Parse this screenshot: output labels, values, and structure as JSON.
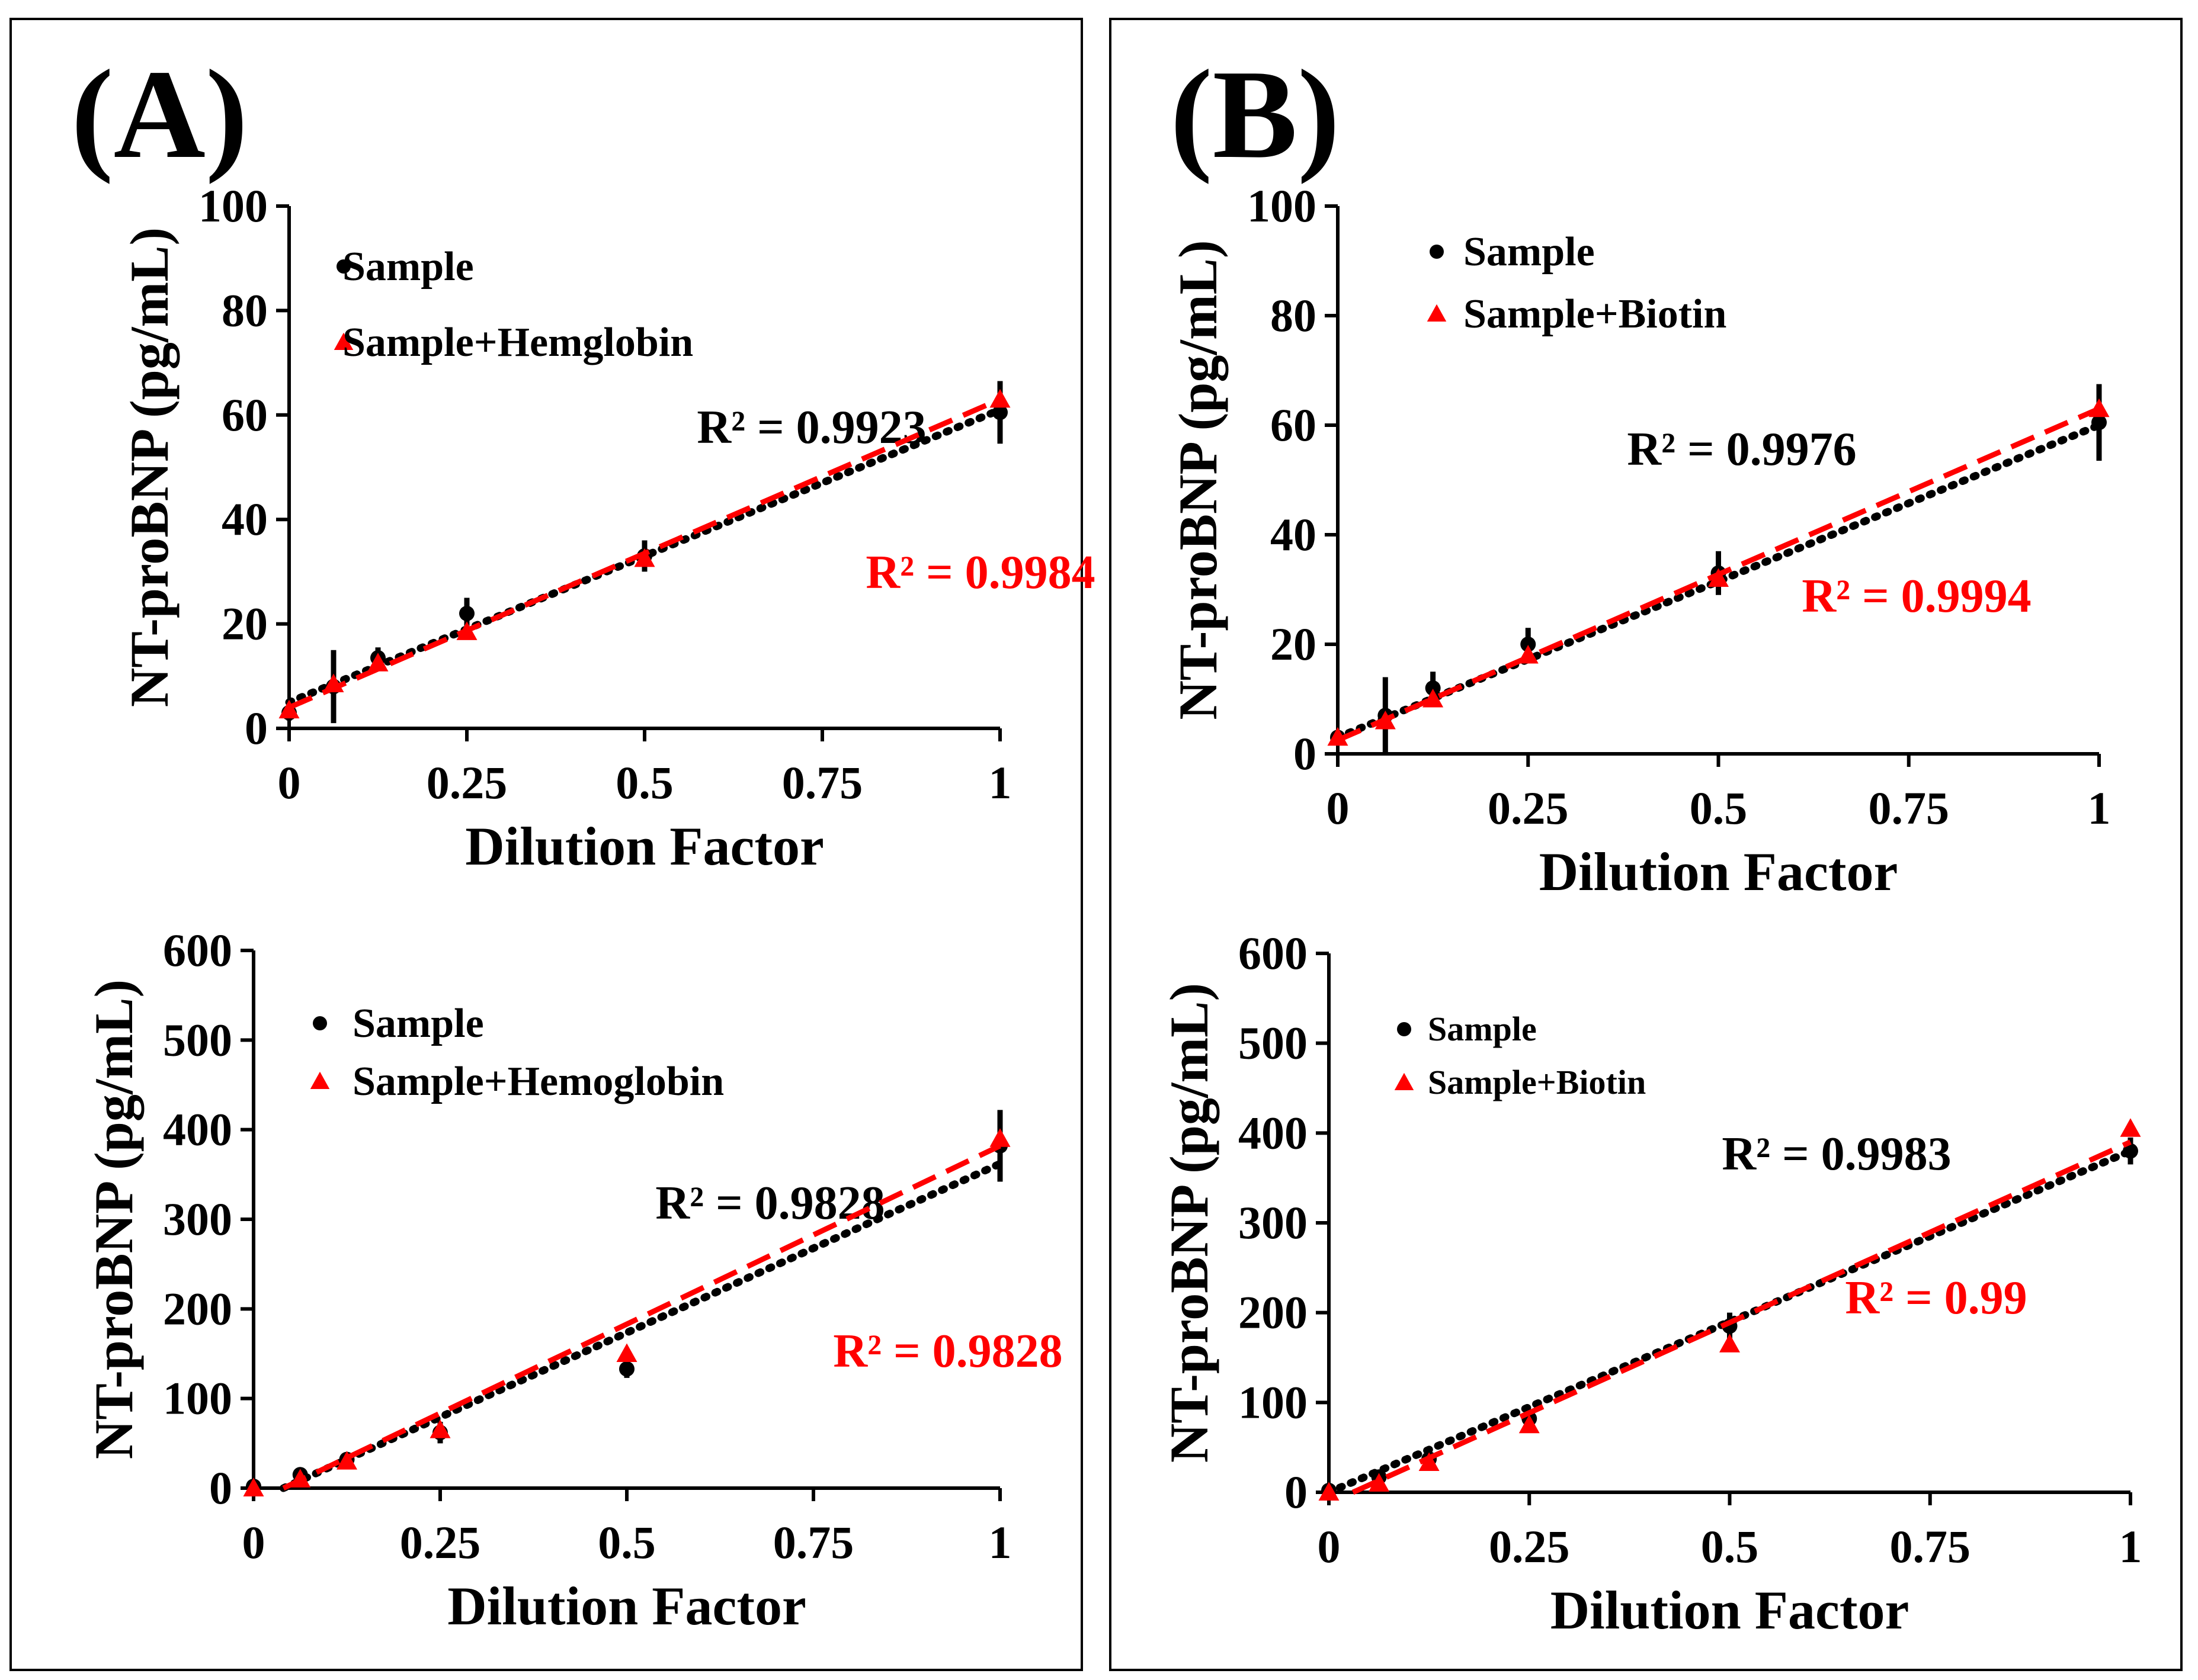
{
  "colors": {
    "sample": "#000000",
    "spiked": "#ff0000",
    "background": "#ffffff"
  },
  "panels": [
    {
      "letter": "(A)"
    },
    {
      "letter": "(B)"
    }
  ],
  "chart_data": [
    {
      "type": "scatter",
      "panel": "A-top",
      "xlabel": "Dilution Factor",
      "ylabel": "NT-proBNP (pg/mL)",
      "xlim": [
        0,
        1
      ],
      "ylim": [
        0,
        100
      ],
      "xticks": [
        "0",
        "0.25",
        "0.5",
        "0.75",
        "1"
      ],
      "yticks": [
        "0",
        "20",
        "40",
        "60",
        "80",
        "100"
      ],
      "xtick_values": [
        0,
        0.25,
        0.5,
        0.75,
        1
      ],
      "ytick_values": [
        0,
        20,
        40,
        60,
        80,
        100
      ],
      "legend_position": "top-left",
      "series": [
        {
          "name": "Sample",
          "marker": "circle",
          "color": "#000000",
          "x": [
            0,
            0.0625,
            0.125,
            0.25,
            0.5,
            1
          ],
          "y": [
            3,
            8,
            13.5,
            22,
            33,
            60.5
          ],
          "err": [
            1.5,
            7,
            2,
            3,
            3,
            6
          ],
          "trend": {
            "style": "dotted",
            "from": [
              0,
              5
            ],
            "to": [
              1,
              61
            ]
          },
          "r2": "R² = 0.9923"
        },
        {
          "name": "Sample+Hemglobin",
          "marker": "triangle",
          "color": "#ff0000",
          "x": [
            0,
            0.0625,
            0.125,
            0.25,
            0.5,
            1
          ],
          "y": [
            3.5,
            8.5,
            12.5,
            18.5,
            32.5,
            63
          ],
          "err": [
            0,
            0,
            0,
            0,
            0,
            0
          ],
          "trend": {
            "style": "dashed",
            "from": [
              0,
              4
            ],
            "to": [
              1,
              63
            ]
          },
          "r2": "R² = 0.9984"
        }
      ]
    },
    {
      "type": "scatter",
      "panel": "A-bottom",
      "xlabel": "Dilution Factor",
      "ylabel": "NT-proBNP (pg/mL)",
      "xlim": [
        0,
        1
      ],
      "ylim": [
        0,
        600
      ],
      "xticks": [
        "0",
        "0.25",
        "0.5",
        "0.75",
        "1"
      ],
      "yticks": [
        "0",
        "100",
        "200",
        "300",
        "400",
        "500",
        "600"
      ],
      "xtick_values": [
        0,
        0.25,
        0.5,
        0.75,
        1
      ],
      "ytick_values": [
        0,
        100,
        200,
        300,
        400,
        500,
        600
      ],
      "legend_position": "top-left",
      "series": [
        {
          "name": "Sample",
          "marker": "circle",
          "color": "#000000",
          "x": [
            0,
            0.0625,
            0.125,
            0.25,
            0.5,
            1
          ],
          "y": [
            2,
            15,
            32,
            62,
            133,
            382
          ],
          "err": [
            2,
            5,
            8,
            12,
            10,
            40
          ],
          "trend": {
            "style": "dotted",
            "from": [
              0.04,
              0
            ],
            "to": [
              1,
              362
            ]
          },
          "r2": "R² = 0.9828"
        },
        {
          "name": "Sample+Hemoglobin",
          "marker": "triangle",
          "color": "#ff0000",
          "x": [
            0,
            0.0625,
            0.125,
            0.25,
            0.5,
            1
          ],
          "y": [
            0,
            10,
            30,
            65,
            150,
            390
          ],
          "err": [
            0,
            0,
            0,
            0,
            0,
            0
          ],
          "trend": {
            "style": "dashed",
            "from": [
              0.04,
              0
            ],
            "to": [
              1,
              382
            ]
          },
          "r2": "R² = 0.9828"
        }
      ]
    },
    {
      "type": "scatter",
      "panel": "B-top",
      "xlabel": "Dilution Factor",
      "ylabel": "NT-proBNP (pg/mL)",
      "xlim": [
        0,
        1
      ],
      "ylim": [
        0,
        100
      ],
      "xticks": [
        "0",
        "0.25",
        "0.5",
        "0.75",
        "1"
      ],
      "yticks": [
        "0",
        "20",
        "40",
        "60",
        "80",
        "100"
      ],
      "xtick_values": [
        0,
        0.25,
        0.5,
        0.75,
        1
      ],
      "ytick_values": [
        0,
        20,
        40,
        60,
        80,
        100
      ],
      "legend_position": "top-left",
      "series": [
        {
          "name": "Sample",
          "marker": "circle",
          "color": "#000000",
          "x": [
            0,
            0.0625,
            0.125,
            0.25,
            0.5,
            1
          ],
          "y": [
            3,
            7,
            12,
            20,
            33,
            60.5
          ],
          "err": [
            1,
            7,
            3,
            3,
            4,
            7
          ],
          "trend": {
            "style": "dotted",
            "from": [
              0,
              3
            ],
            "to": [
              1,
              60
            ]
          },
          "r2": "R² = 0.9976"
        },
        {
          "name": "Sample+Biotin",
          "marker": "triangle",
          "color": "#ff0000",
          "x": [
            0,
            0.0625,
            0.125,
            0.25,
            0.5,
            1
          ],
          "y": [
            3,
            6,
            10,
            18,
            32,
            63
          ],
          "err": [
            0,
            0,
            0,
            0,
            0,
            0
          ],
          "trend": {
            "style": "dashed",
            "from": [
              0,
              2.5
            ],
            "to": [
              1,
              63
            ]
          },
          "r2": "R² = 0.9994"
        }
      ]
    },
    {
      "type": "scatter",
      "panel": "B-bottom",
      "xlabel": "Dilution Factor",
      "ylabel": "NT-proBNP (pg/mL)",
      "xlim": [
        0,
        1
      ],
      "ylim": [
        0,
        600
      ],
      "xticks": [
        "0",
        "0.25",
        "0.5",
        "0.75",
        "1"
      ],
      "yticks": [
        "0",
        "100",
        "200",
        "300",
        "400",
        "500",
        "600"
      ],
      "xtick_values": [
        0,
        0.25,
        0.5,
        0.75,
        1
      ],
      "ytick_values": [
        0,
        100,
        200,
        300,
        400,
        500,
        600
      ],
      "legend_position": "top-left",
      "series": [
        {
          "name": "Sample",
          "marker": "circle",
          "color": "#000000",
          "x": [
            0,
            0.0625,
            0.125,
            0.25,
            0.5,
            1
          ],
          "y": [
            2,
            17,
            37,
            82,
            185,
            380
          ],
          "err": [
            2,
            5,
            6,
            10,
            15,
            15
          ],
          "trend": {
            "style": "dotted",
            "from": [
              0,
              0
            ],
            "to": [
              1,
              380
            ]
          },
          "r2": "R² = 0.9983"
        },
        {
          "name": "Sample+Biotin",
          "marker": "triangle",
          "color": "#ff0000",
          "x": [
            0,
            0.0625,
            0.125,
            0.25,
            0.5,
            1
          ],
          "y": [
            0,
            10,
            33,
            75,
            165,
            405
          ],
          "err": [
            0,
            0,
            0,
            0,
            0,
            0
          ],
          "trend": {
            "style": "dashed",
            "from": [
              0.03,
              0
            ],
            "to": [
              1,
              390
            ]
          },
          "r2": "R² = 0.99"
        }
      ]
    }
  ]
}
